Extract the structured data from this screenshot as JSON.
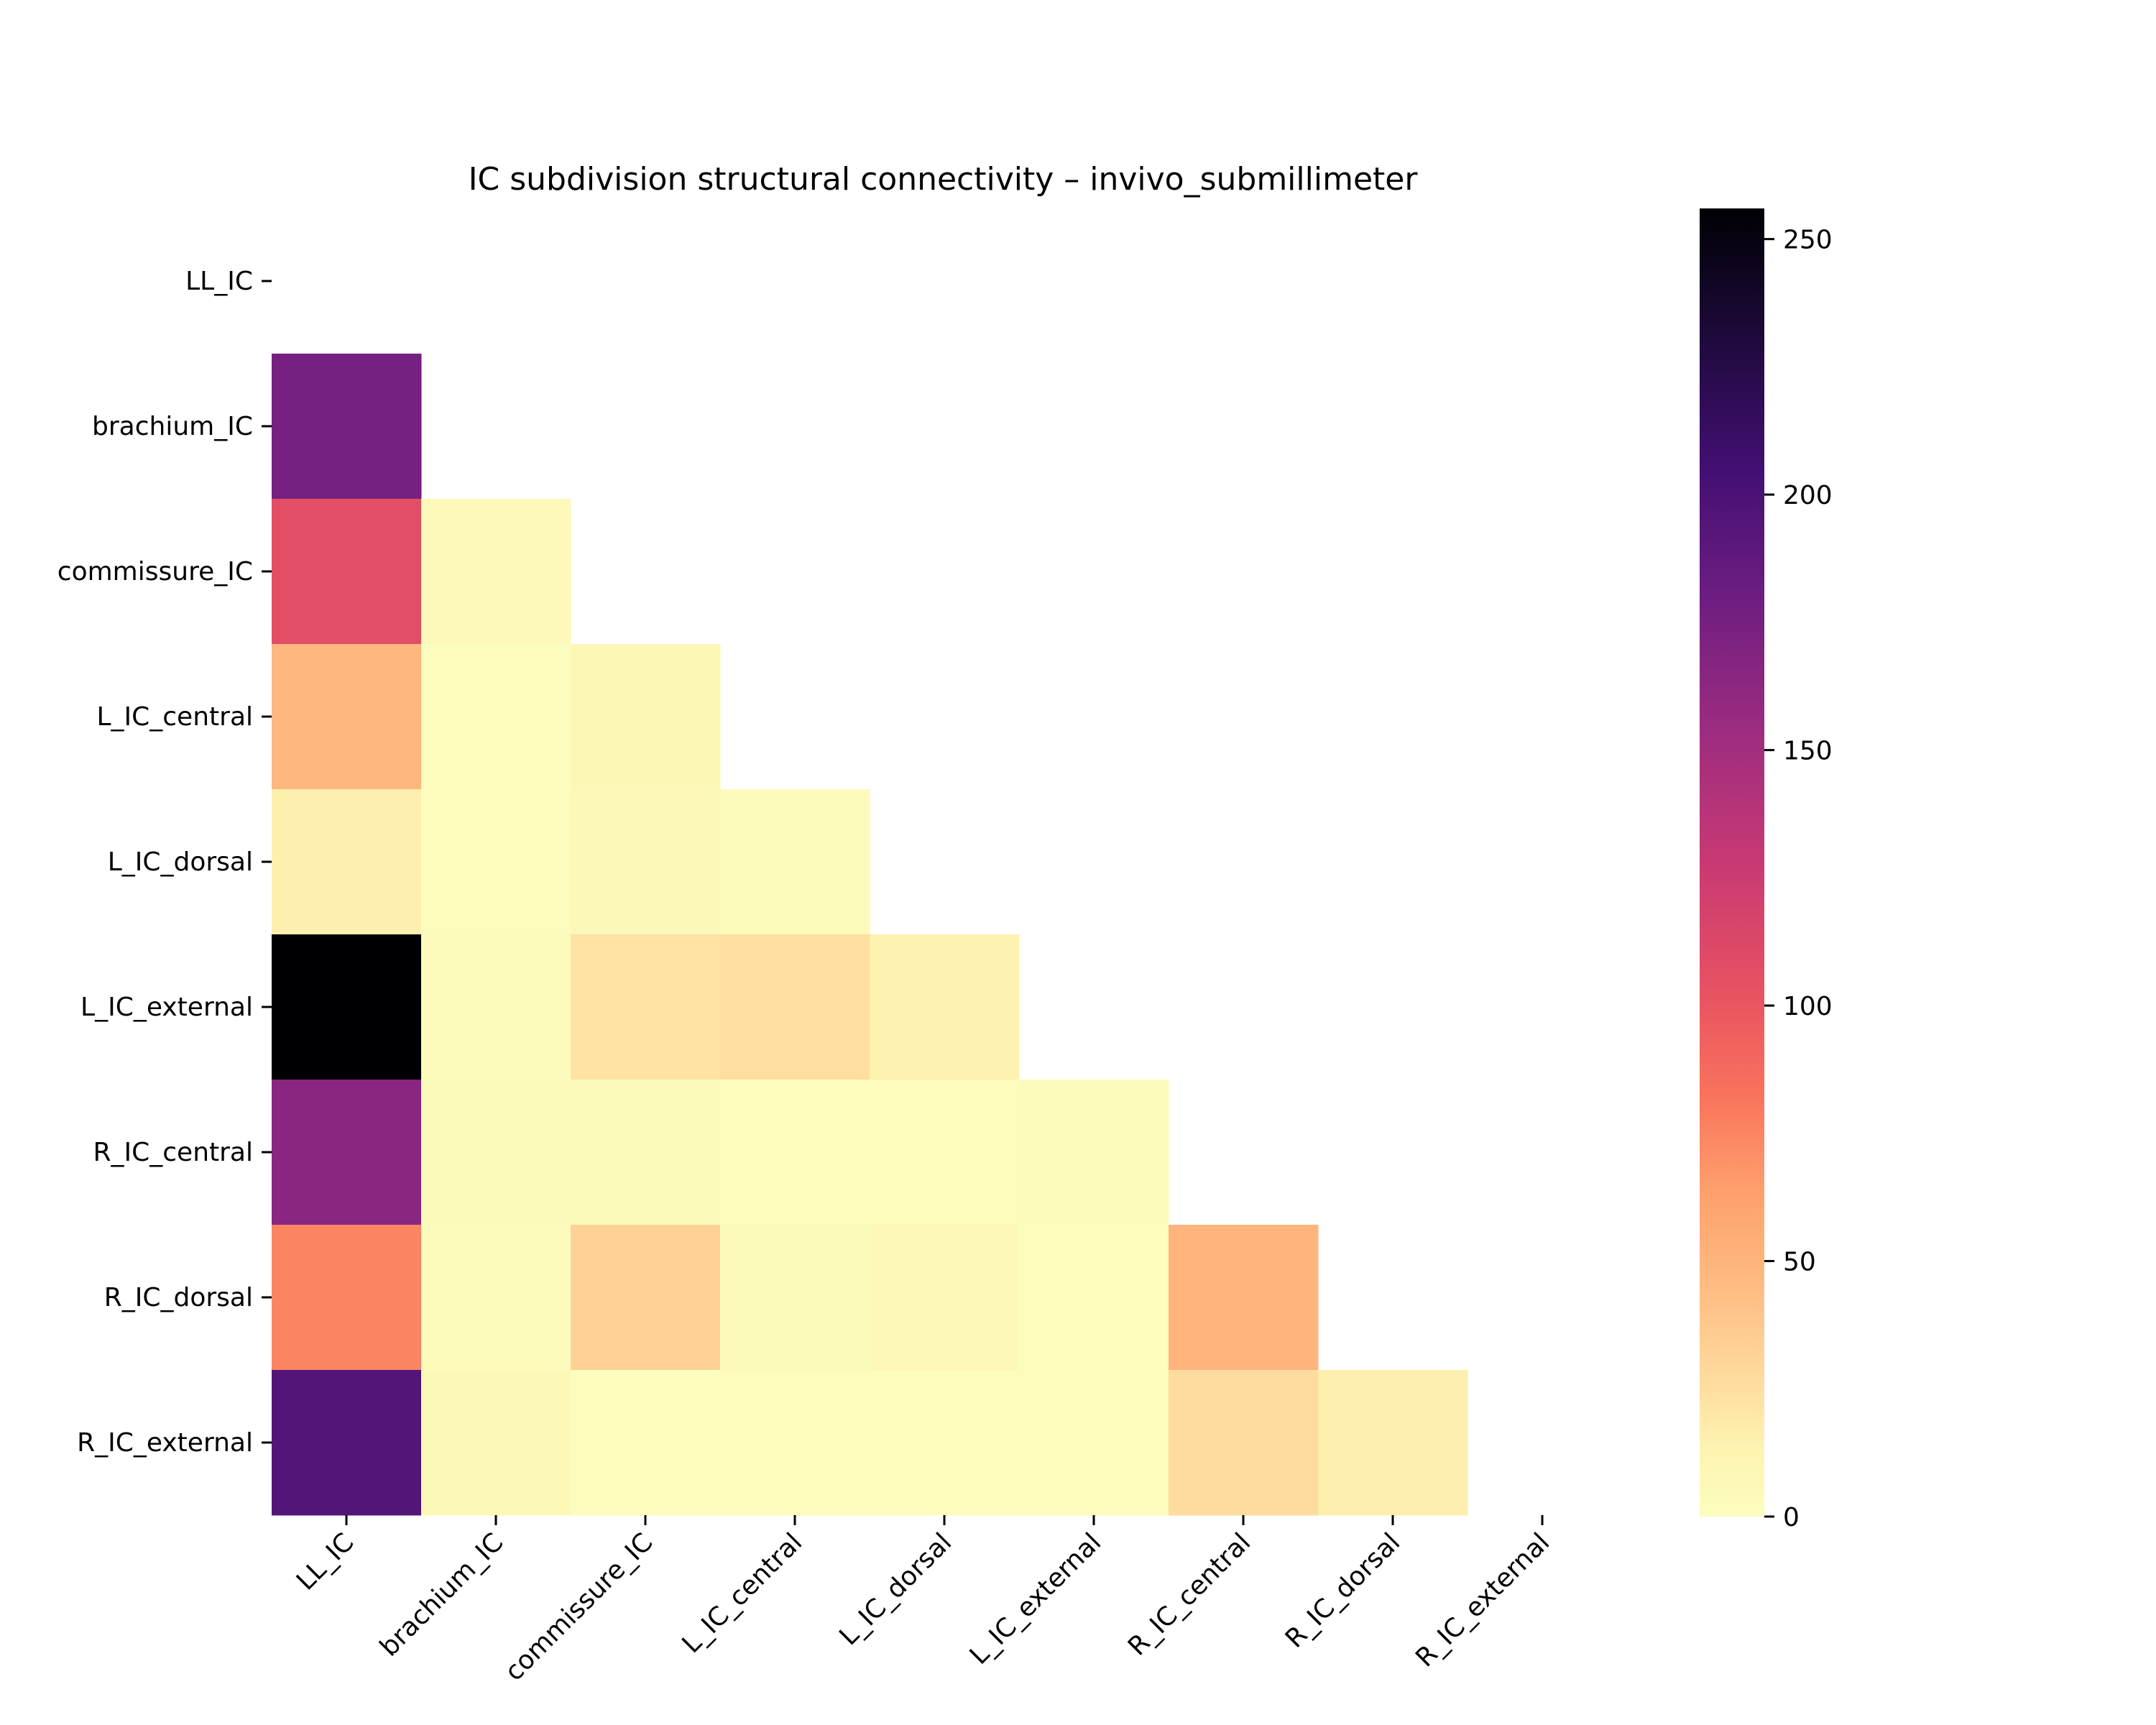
{
  "chart_data": {
    "type": "heatmap",
    "title": "IC subdivision structural connectivity – invivo_submillimeter",
    "row_labels": [
      "LL_IC",
      "brachium_IC",
      "commissure_IC",
      "L_IC_central",
      "L_IC_dorsal",
      "L_IC_external",
      "R_IC_central",
      "R_IC_dorsal",
      "R_IC_external"
    ],
    "col_labels": [
      "LL_IC",
      "brachium_IC",
      "commissure_IC",
      "L_IC_central",
      "L_IC_dorsal",
      "L_IC_external",
      "R_IC_central",
      "R_IC_dorsal",
      "R_IC_external"
    ],
    "mask": "upper-triangle-including-diagonal",
    "values": [
      [
        null,
        null,
        null,
        null,
        null,
        null,
        null,
        null,
        null
      ],
      [
        175,
        null,
        null,
        null,
        null,
        null,
        null,
        null,
        null
      ],
      [
        107,
        5,
        null,
        null,
        null,
        null,
        null,
        null,
        null
      ],
      [
        48,
        1,
        8,
        null,
        null,
        null,
        null,
        null,
        null
      ],
      [
        15,
        1,
        6,
        3,
        null,
        null,
        null,
        null,
        null
      ],
      [
        256,
        3,
        22,
        25,
        14,
        null,
        null,
        null,
        null
      ],
      [
        165,
        4,
        4,
        1,
        1,
        3,
        null,
        null,
        null
      ],
      [
        75,
        3,
        32,
        4,
        7,
        1,
        50,
        null,
        null
      ],
      [
        195,
        6,
        1,
        1,
        1,
        1,
        27,
        16,
        null
      ]
    ],
    "colorscale": "magma_r",
    "colorbar": {
      "min": 0,
      "max": 256,
      "ticks": [
        0,
        50,
        100,
        150,
        200,
        250
      ]
    }
  }
}
